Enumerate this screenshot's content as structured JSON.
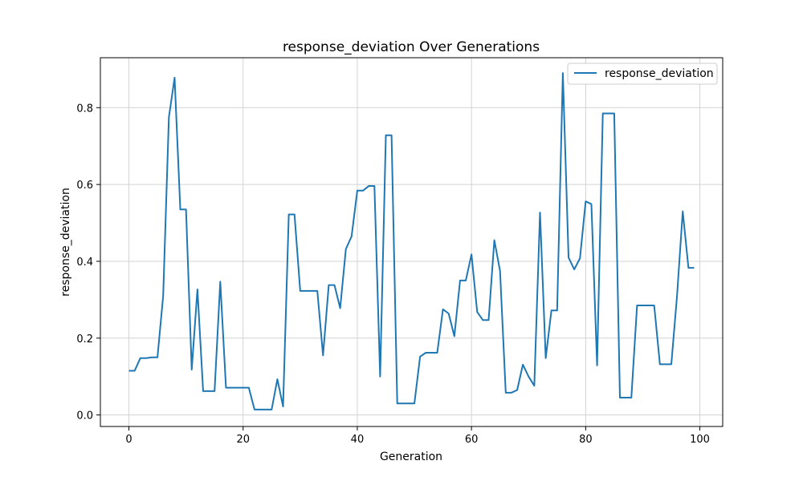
{
  "chart_data": {
    "type": "line",
    "title": "response_deviation Over Generations",
    "xlabel": "Generation",
    "ylabel": "response_deviation",
    "xlim": [
      -5,
      104
    ],
    "ylim": [
      -0.03,
      0.93
    ],
    "xticks": [
      0,
      20,
      40,
      60,
      80,
      100
    ],
    "yticks": [
      0.0,
      0.2,
      0.4,
      0.6,
      0.8
    ],
    "xtick_labels": [
      "0",
      "20",
      "40",
      "60",
      "80",
      "100"
    ],
    "ytick_labels": [
      "0.0",
      "0.2",
      "0.4",
      "0.6",
      "0.8"
    ],
    "grid": true,
    "legend_position": "top-right",
    "colors": {
      "series": "#1f77b4",
      "grid": "#d3d3d3",
      "axes": "#000000"
    },
    "series": [
      {
        "name": "response_deviation",
        "x": [
          0,
          1,
          2,
          3,
          4,
          5,
          6,
          7,
          8,
          9,
          10,
          11,
          12,
          13,
          14,
          15,
          16,
          17,
          18,
          19,
          20,
          21,
          22,
          23,
          24,
          25,
          26,
          27,
          28,
          29,
          30,
          31,
          32,
          33,
          34,
          35,
          36,
          37,
          38,
          39,
          40,
          41,
          42,
          43,
          44,
          45,
          46,
          47,
          48,
          49,
          50,
          51,
          52,
          53,
          54,
          55,
          56,
          57,
          58,
          59,
          60,
          61,
          62,
          63,
          64,
          65,
          66,
          67,
          68,
          69,
          70,
          71,
          72,
          73,
          74,
          75,
          76,
          77,
          78,
          79,
          80,
          81,
          82,
          83,
          84,
          85,
          86,
          87,
          88,
          89,
          90,
          91,
          92,
          93,
          94,
          95,
          96,
          97,
          98,
          99
        ],
        "values": [
          0.115,
          0.115,
          0.148,
          0.148,
          0.15,
          0.15,
          0.31,
          0.775,
          0.878,
          0.535,
          0.535,
          0.118,
          0.327,
          0.062,
          0.062,
          0.062,
          0.347,
          0.071,
          0.071,
          0.071,
          0.071,
          0.071,
          0.014,
          0.014,
          0.014,
          0.014,
          0.093,
          0.022,
          0.522,
          0.522,
          0.323,
          0.323,
          0.323,
          0.323,
          0.155,
          0.338,
          0.338,
          0.278,
          0.432,
          0.465,
          0.584,
          0.584,
          0.596,
          0.596,
          0.1,
          0.728,
          0.728,
          0.03,
          0.03,
          0.03,
          0.03,
          0.152,
          0.162,
          0.162,
          0.162,
          0.275,
          0.264,
          0.205,
          0.35,
          0.35,
          0.418,
          0.268,
          0.247,
          0.247,
          0.455,
          0.375,
          0.058,
          0.058,
          0.065,
          0.131,
          0.1,
          0.076,
          0.527,
          0.148,
          0.272,
          0.272,
          0.89,
          0.41,
          0.379,
          0.408,
          0.556,
          0.549,
          0.129,
          0.785,
          0.785,
          0.785,
          0.045,
          0.045,
          0.045,
          0.285,
          0.285,
          0.285,
          0.285,
          0.132,
          0.132,
          0.132,
          0.31,
          0.53,
          0.383,
          0.383
        ]
      }
    ]
  }
}
